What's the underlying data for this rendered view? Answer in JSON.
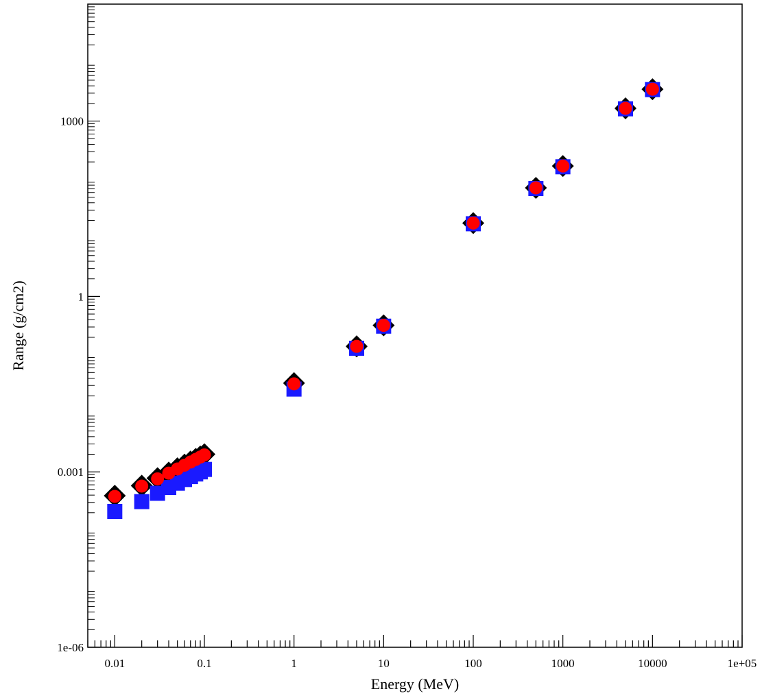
{
  "chart_data": {
    "type": "scatter",
    "title": "",
    "xlabel": "Energy (MeV)",
    "ylabel": "Range (g/cm2)",
    "xscale": "log",
    "yscale": "log",
    "xlim": [
      0.005,
      100000
    ],
    "ylim": [
      1e-06,
      100000
    ],
    "grid": false,
    "x_tick_labels": [
      {
        "v": 0.01,
        "label": "0.01"
      },
      {
        "v": 0.1,
        "label": "0.1"
      },
      {
        "v": 1,
        "label": "1"
      },
      {
        "v": 10,
        "label": "10"
      },
      {
        "v": 100,
        "label": "100"
      },
      {
        "v": 1000,
        "label": "1000"
      },
      {
        "v": 10000,
        "label": "10000"
      },
      {
        "v": 100000,
        "label": "1e+05"
      }
    ],
    "y_tick_labels": [
      {
        "v": 1e-06,
        "label": "1e-06"
      },
      {
        "v": 0.001,
        "label": "0.001"
      },
      {
        "v": 1,
        "label": "1"
      },
      {
        "v": 1000,
        "label": "1000"
      }
    ],
    "series": [
      {
        "marker": "diamond",
        "color": "#000000",
        "x": [
          0.01,
          0.02,
          0.03,
          0.04,
          0.05,
          0.06,
          0.07,
          0.08,
          0.09,
          0.1,
          1,
          5,
          10,
          100,
          500,
          1000,
          5000,
          10000
        ],
        "y": [
          0.00039,
          0.00058,
          0.00078,
          0.00097,
          0.00115,
          0.00133,
          0.0015,
          0.00167,
          0.00183,
          0.002,
          0.033,
          0.14,
          0.32,
          18,
          72,
          170,
          1650,
          3500
        ]
      },
      {
        "marker": "square",
        "color": "#1a1aff",
        "x": [
          0.01,
          0.02,
          0.03,
          0.04,
          0.05,
          0.06,
          0.07,
          0.08,
          0.09,
          0.1,
          1,
          5,
          10,
          100,
          500,
          1000,
          5000,
          10000
        ],
        "y": [
          0.00021,
          0.00031,
          0.00043,
          0.00054,
          0.00064,
          0.00074,
          0.00083,
          0.00092,
          0.001,
          0.0011,
          0.026,
          0.13,
          0.31,
          17.5,
          70,
          165,
          1620,
          3450
        ]
      },
      {
        "marker": "circle",
        "color": "#ff0000",
        "x": [
          0.01,
          0.02,
          0.03,
          0.04,
          0.05,
          0.06,
          0.07,
          0.08,
          0.09,
          0.1,
          1,
          5,
          10,
          100,
          500,
          1000,
          5000,
          10000
        ],
        "y": [
          0.00038,
          0.00057,
          0.00076,
          0.00095,
          0.00112,
          0.0013,
          0.00147,
          0.00163,
          0.00179,
          0.00195,
          0.032,
          0.14,
          0.32,
          18,
          72,
          170,
          1650,
          3500
        ]
      }
    ]
  }
}
